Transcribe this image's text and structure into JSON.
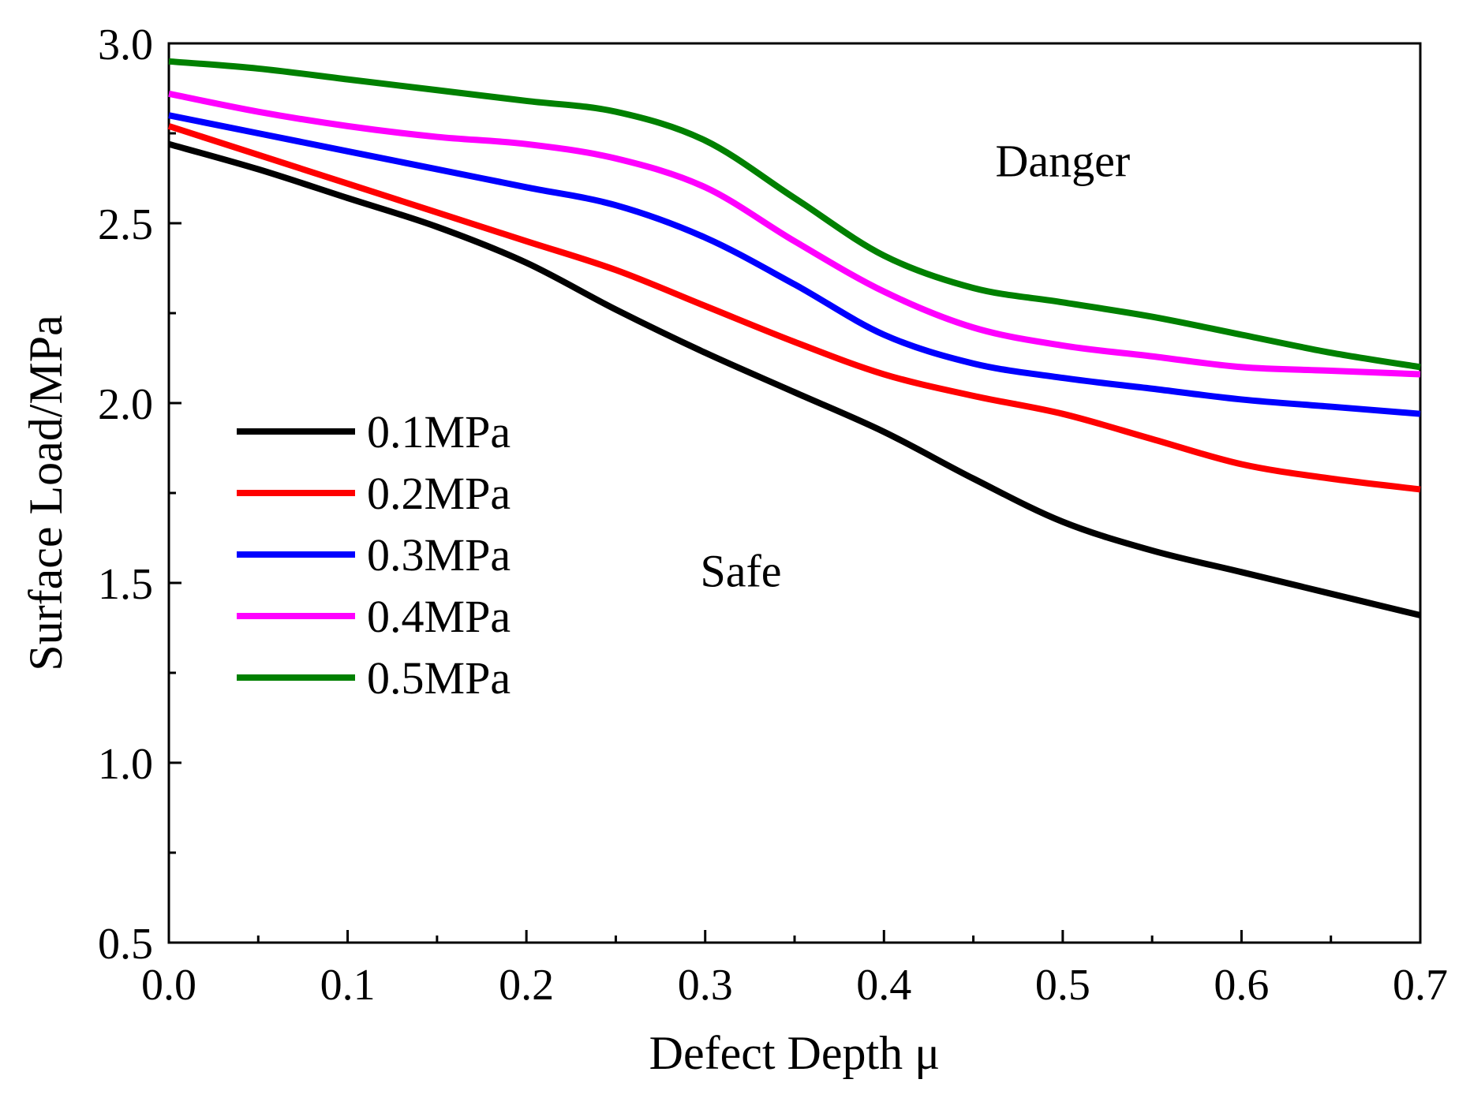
{
  "chart_data": {
    "type": "line",
    "title": "",
    "xlabel": "Defect Depth μ",
    "ylabel": "Surface Load/MPa",
    "xlim": [
      0.0,
      0.7
    ],
    "ylim": [
      0.5,
      3.0
    ],
    "xticks": [
      "0.0",
      "0.1",
      "0.2",
      "0.3",
      "0.4",
      "0.5",
      "0.6",
      "0.7"
    ],
    "yticks": [
      "0.5",
      "1.0",
      "1.5",
      "2.0",
      "2.5",
      "3.0"
    ],
    "grid": false,
    "legend_position": "middle-left",
    "annotations": [
      {
        "text": "Danger",
        "x": 0.5,
        "y": 2.63
      },
      {
        "text": "Safe",
        "x": 0.32,
        "y": 1.49
      }
    ],
    "x": [
      0.0,
      0.05,
      0.1,
      0.15,
      0.2,
      0.25,
      0.3,
      0.35,
      0.4,
      0.45,
      0.5,
      0.55,
      0.6,
      0.65,
      0.7
    ],
    "series": [
      {
        "name": "0.1MPa",
        "color": "#000000",
        "values": [
          2.72,
          2.65,
          2.57,
          2.49,
          2.39,
          2.26,
          2.14,
          2.03,
          1.92,
          1.79,
          1.67,
          1.59,
          1.53,
          1.47,
          1.41
        ]
      },
      {
        "name": "0.2MPa",
        "color": "#ff0000",
        "values": [
          2.77,
          2.69,
          2.61,
          2.53,
          2.45,
          2.37,
          2.27,
          2.17,
          2.08,
          2.02,
          1.97,
          1.9,
          1.83,
          1.79,
          1.76
        ]
      },
      {
        "name": "0.3MPa",
        "color": "#0000ff",
        "values": [
          2.8,
          2.75,
          2.7,
          2.65,
          2.6,
          2.55,
          2.46,
          2.33,
          2.19,
          2.11,
          2.07,
          2.04,
          2.01,
          1.99,
          1.97
        ]
      },
      {
        "name": "0.4MPa",
        "color": "#ff00ff",
        "values": [
          2.86,
          2.81,
          2.77,
          2.74,
          2.72,
          2.68,
          2.6,
          2.45,
          2.31,
          2.21,
          2.16,
          2.13,
          2.1,
          2.09,
          2.08
        ]
      },
      {
        "name": "0.5MPa",
        "color": "#008000",
        "values": [
          2.95,
          2.93,
          2.9,
          2.87,
          2.84,
          2.81,
          2.73,
          2.57,
          2.41,
          2.32,
          2.28,
          2.24,
          2.19,
          2.14,
          2.1
        ]
      }
    ]
  }
}
